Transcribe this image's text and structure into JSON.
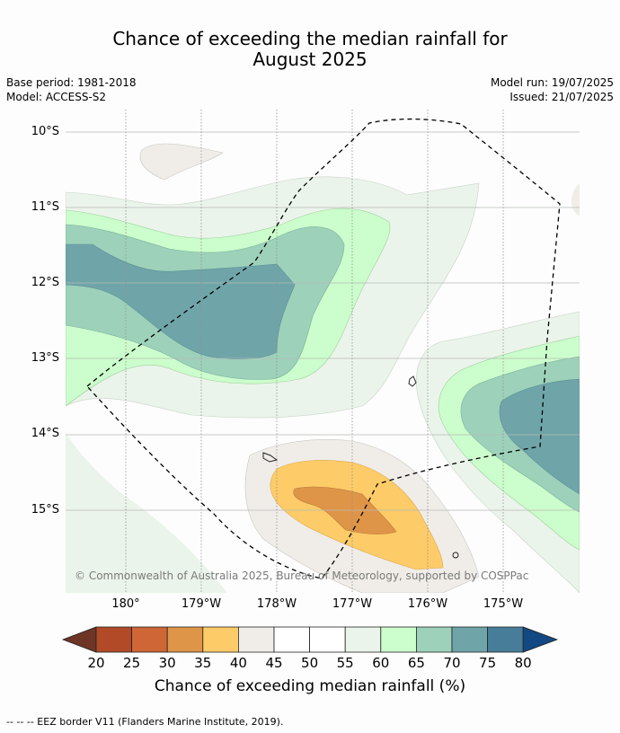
{
  "title_line1": "Chance of exceeding the median rainfall for",
  "title_line2": "August 2025",
  "meta_left": [
    "Base period: 1981-2018",
    "Model: ACCESS-S2"
  ],
  "meta_right": [
    "Model run: 19/07/2025",
    "Issued: 21/07/2025"
  ],
  "lat_labels": [
    "10°S",
    "11°S",
    "12°S",
    "13°S",
    "14°S",
    "15°S"
  ],
  "lon_labels": [
    "180°",
    "179°W",
    "178°W",
    "177°W",
    "176°W",
    "175°W"
  ],
  "credit": "© Commonwealth of Australia 2025, Bureau of Meteorology, supported by COSPPac",
  "colorbar": {
    "ticks": [
      "20",
      "25",
      "30",
      "35",
      "40",
      "45",
      "50",
      "55",
      "60",
      "65",
      "70",
      "75",
      "80"
    ],
    "colors": [
      "#6e3526",
      "#b24a28",
      "#ce6636",
      "#df9548",
      "#fdcc68",
      "#f0ede9",
      "#ffffff",
      "#ffffff",
      "#ebf4ea",
      "#ccfdcc",
      "#9dd1ba",
      "#6fa5a9",
      "#477d99",
      "#134982"
    ],
    "title": "Chance of exceeding median rainfall (%)"
  },
  "footer": "--  --  -- EEZ border V11 (Flanders Marine Institute, 2019)."
}
